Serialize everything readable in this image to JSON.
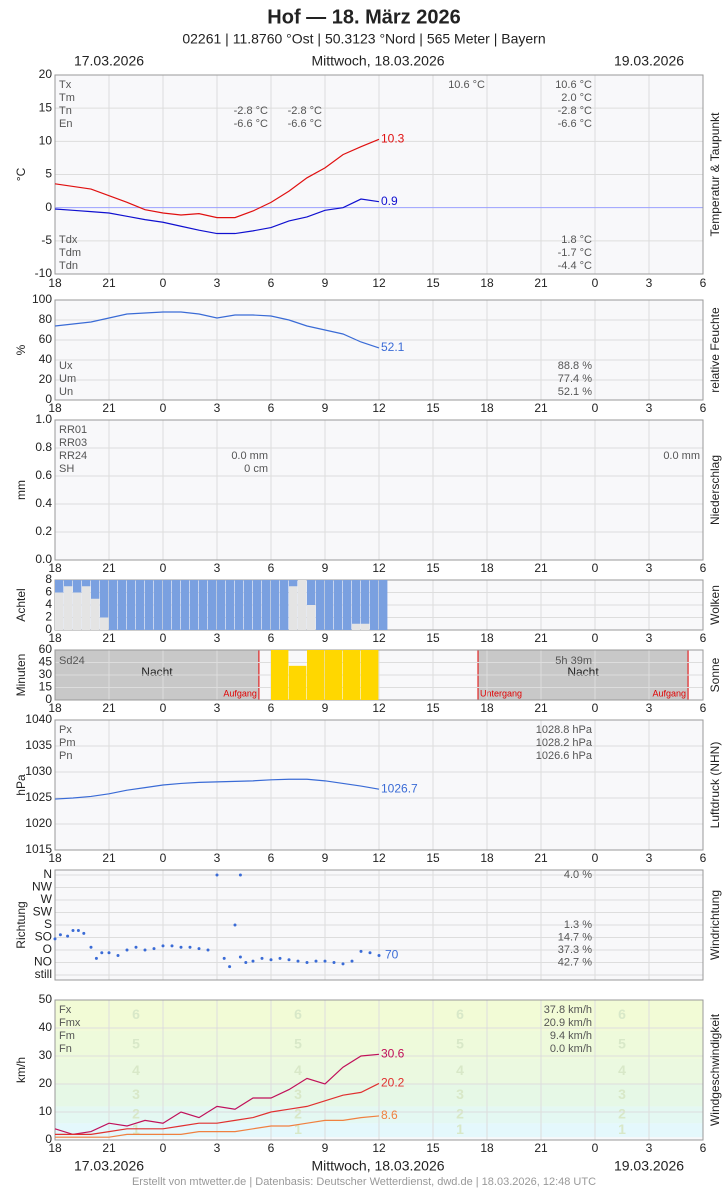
{
  "header": {
    "title": "Hof  —  18. März 2026",
    "subtitle": "02261  |  11.8760 °Ost  |  50.3123 °Nord  |  565 Meter  |  Bayern",
    "dates": [
      "17.03.2026",
      "Mittwoch, 18.03.2026",
      "19.03.2026"
    ]
  },
  "footer": "Erstellt von mtwetter.de | Datenbasis: Deutscher Wetterdienst, dwd.de | 18.03.2026, 12:48 UTC",
  "x_axis": {
    "xlim": [
      18,
      54
    ],
    "xticks": [
      18,
      21,
      {
        "value": 24,
        "label": "0"
      },
      {
        "value": 27,
        "label": "3"
      },
      {
        "value": 30,
        "label": "6"
      },
      {
        "value": 33,
        "label": "9"
      },
      {
        "value": 36,
        "label": "12"
      },
      {
        "value": 39,
        "label": "15"
      },
      {
        "value": 42,
        "label": "18"
      },
      {
        "value": 45,
        "label": "21"
      },
      {
        "value": 48,
        "label": "0"
      },
      {
        "value": 51,
        "label": "3"
      },
      {
        "value": 54,
        "label": "6"
      }
    ]
  },
  "chart_data": [
    {
      "type": "line",
      "ylabel": "°C",
      "side_title": "Temperatur & Taupunkt",
      "ylim": [
        -10,
        20
      ],
      "yticks": [
        20,
        15,
        10,
        5,
        0,
        -5,
        -10
      ],
      "series": [
        {
          "color": "#e01010",
          "x": [
            18,
            19,
            20,
            21,
            22,
            23,
            24,
            25,
            26,
            27,
            28,
            29,
            30,
            31,
            32,
            33,
            34,
            35,
            36
          ],
          "values": [
            3.6,
            3.2,
            2.8,
            1.8,
            0.8,
            -0.3,
            -0.8,
            -1.1,
            -0.9,
            -1.5,
            -1.5,
            -0.5,
            0.8,
            2.5,
            4.5,
            6.0,
            8.0,
            9.2,
            10.3
          ]
        },
        {
          "color": "#1010d0",
          "x": [
            18,
            19,
            20,
            21,
            22,
            23,
            24,
            25,
            26,
            27,
            28,
            29,
            30,
            31,
            32,
            33,
            34,
            35,
            36
          ],
          "values": [
            -0.2,
            -0.4,
            -0.6,
            -0.8,
            -1.3,
            -1.8,
            -2.2,
            -2.8,
            -3.4,
            -3.9,
            -3.9,
            -3.5,
            -3.0,
            -2.0,
            -1.4,
            -0.4,
            0.0,
            1.3,
            0.9
          ]
        }
      ],
      "stats": [
        {
          "name": "Tx",
          "col3": "10.6 °C",
          "col4": "10.6 °C"
        },
        {
          "name": "Tm",
          "col4": "2.0 °C"
        },
        {
          "name": "Tn",
          "col1": "-2.8 °C",
          "col2": "-2.8 °C",
          "col4": "-2.8 °C"
        },
        {
          "name": "En",
          "col1": "-6.6 °C",
          "col2": "-6.6 °C",
          "col4": "-6.6 °C"
        }
      ],
      "stats_bottom": [
        {
          "name": "Tdx",
          "col4": "1.8 °C"
        },
        {
          "name": "Tdm",
          "col4": "-1.7 °C"
        },
        {
          "name": "Tdn",
          "col4": "-4.4 °C"
        }
      ]
    },
    {
      "type": "line",
      "ylabel": "%",
      "side_title": "relative Feuchte",
      "ylim": [
        0,
        100
      ],
      "yticks": [
        100,
        80,
        60,
        40,
        20,
        0
      ],
      "series": [
        {
          "color": "#3a6bd6",
          "x": [
            18,
            19,
            20,
            21,
            22,
            23,
            24,
            25,
            26,
            27,
            28,
            29,
            30,
            31,
            32,
            33,
            34,
            35,
            36
          ],
          "values": [
            74,
            76,
            78,
            82,
            86,
            87,
            88,
            88,
            86,
            82,
            85,
            85,
            84,
            80,
            74,
            70,
            66,
            58,
            52.1
          ]
        }
      ],
      "stats_bottom": [
        {
          "name": "Ux",
          "col4": "88.8 %"
        },
        {
          "name": "Um",
          "col4": "77.4 %"
        },
        {
          "name": "Un",
          "col4": "52.1 %"
        }
      ]
    },
    {
      "type": "bar",
      "ylabel": "mm",
      "side_title": "Niederschlag",
      "ylim": [
        0,
        1
      ],
      "yticks": [
        {
          "value": 1,
          "label": "1.0"
        },
        0.8,
        0.6,
        0.4,
        0.2,
        {
          "value": 0,
          "label": "0.0"
        }
      ],
      "stats": [
        {
          "name": "RR01"
        },
        {
          "name": "RR03"
        },
        {
          "name": "RR24",
          "col1": "0.0 mm",
          "col5": "0.0 mm"
        },
        {
          "name": "SH",
          "col1": "0 cm"
        }
      ]
    },
    {
      "type": "bar",
      "ylabel": "Achtel",
      "side_title": "Wolken",
      "ylim": [
        0,
        8
      ],
      "yticks": [
        8,
        6,
        4,
        2,
        0
      ],
      "series": [
        {
          "color": "#7aa0e0",
          "x": [
            18,
            18.5,
            19,
            19.5,
            20,
            20.5,
            21,
            21.5,
            22,
            22.5,
            23,
            23.5,
            24,
            24.5,
            25,
            25.5,
            26,
            26.5,
            27,
            27.5,
            28,
            28.5,
            29,
            29.5,
            30,
            30.5,
            31,
            31.5,
            32,
            32.5,
            33,
            33.5,
            34,
            34.5,
            35,
            35.5,
            36
          ],
          "values": [
            8,
            8,
            8,
            8,
            8,
            8,
            8,
            8,
            8,
            8,
            8,
            8,
            8,
            8,
            8,
            8,
            8,
            8,
            8,
            8,
            8,
            8,
            8,
            8,
            8,
            8,
            8,
            8,
            8,
            8,
            8,
            8,
            8,
            8,
            8,
            8,
            8
          ]
        },
        {
          "color": "#e4e4e4",
          "x": [
            18,
            18.5,
            19,
            19.5,
            20,
            20.5,
            31,
            31.5,
            32,
            34.5,
            35
          ],
          "values": [
            6,
            7,
            6,
            7,
            5,
            2,
            7,
            8,
            4,
            1,
            1
          ]
        }
      ]
    },
    {
      "type": "bar",
      "ylabel": "Minuten",
      "side_title": "Sonne",
      "ylim": [
        0,
        60
      ],
      "yticks": [
        60,
        45,
        30,
        15,
        0
      ],
      "series": [
        {
          "color": "#ffd700",
          "x": [
            30,
            31,
            32,
            33,
            34,
            35
          ],
          "values": [
            60,
            41,
            60,
            60,
            60,
            60
          ]
        }
      ],
      "stats": [
        {
          "name": "Sd24",
          "col4": "5h 39m"
        }
      ],
      "night_label": "Nacht",
      "events": [
        {
          "label": "Aufgang",
          "x": 29.33
        },
        {
          "label": "Untergang",
          "x": 41.5
        },
        {
          "label": "Aufgang",
          "x": 53.17
        }
      ]
    },
    {
      "type": "line",
      "ylabel": "hPa",
      "side_title": "Luftdruck (NHN)",
      "ylim": [
        1015,
        1040
      ],
      "yticks": [
        1040,
        1035,
        1030,
        1025,
        1020,
        1015
      ],
      "series": [
        {
          "color": "#3a6bd6",
          "x": [
            18,
            19,
            20,
            21,
            22,
            23,
            24,
            25,
            26,
            27,
            28,
            29,
            30,
            31,
            32,
            33,
            34,
            35,
            36
          ],
          "values": [
            1024.8,
            1025.0,
            1025.3,
            1025.8,
            1026.5,
            1027.0,
            1027.5,
            1027.8,
            1028.0,
            1028.1,
            1028.2,
            1028.3,
            1028.5,
            1028.6,
            1028.6,
            1028.3,
            1027.8,
            1027.3,
            1026.7
          ]
        }
      ],
      "stats": [
        {
          "name": "Px",
          "col4": "1028.8 hPa"
        },
        {
          "name": "Pm",
          "col4": "1028.2 hPa"
        },
        {
          "name": "Pn",
          "col4": "1026.6 hPa"
        }
      ]
    },
    {
      "type": "scatter",
      "ylabel": "Richtung",
      "side_title": "Windrichtung",
      "ylim": [
        0,
        360
      ],
      "yticks": [
        {
          "value": 360,
          "label": "N"
        },
        {
          "value": 315,
          "label": "NW"
        },
        {
          "value": 270,
          "label": "W"
        },
        {
          "value": 225,
          "label": "SW"
        },
        {
          "value": 180,
          "label": "S"
        },
        {
          "value": 135,
          "label": "SO"
        },
        {
          "value": 90,
          "label": "O"
        },
        {
          "value": 45,
          "label": "NO"
        },
        {
          "value": 0,
          "label": "still"
        }
      ],
      "shares": [
        "4.0 %",
        null,
        null,
        null,
        "1.3 %",
        "14.7 %",
        "37.3 %",
        "42.7 %",
        null
      ],
      "series": [
        {
          "color": "#3a6bd6",
          "x": [
            18,
            18.3,
            18.7,
            19,
            19.3,
            19.6,
            20,
            20.3,
            20.6,
            21,
            21.5,
            22,
            22.5,
            23,
            23.5,
            24,
            24.5,
            25,
            25.5,
            26,
            26.5,
            27,
            27.4,
            27.7,
            28,
            28.3,
            28.3,
            28.6,
            29,
            29.5,
            30,
            30.5,
            31,
            31.5,
            32,
            32.5,
            33,
            33.5,
            34,
            34.5,
            35,
            35.5,
            36
          ],
          "values": [
            130,
            145,
            140,
            160,
            160,
            150,
            100,
            60,
            80,
            80,
            70,
            90,
            100,
            90,
            95,
            105,
            105,
            100,
            100,
            95,
            90,
            360,
            60,
            30,
            180,
            65,
            360,
            45,
            50,
            60,
            55,
            60,
            55,
            50,
            45,
            50,
            50,
            45,
            40,
            50,
            85,
            80,
            70
          ]
        }
      ]
    },
    {
      "type": "line",
      "ylabel": "km/h",
      "side_title": "Windgeschwindigkeit",
      "ylim": [
        0,
        50
      ],
      "yticks": [
        50,
        40,
        30,
        20,
        10,
        0
      ],
      "beaufort": {
        "labels": [
          1,
          2,
          3,
          4,
          5,
          6
        ],
        "edges": [
          1,
          6,
          12,
          20,
          29,
          39,
          50
        ],
        "colors": [
          "#e4f8fc",
          "#e4f8f2",
          "#e6f8e6",
          "#ebf9e0",
          "#eefadb",
          "#f2fbd6"
        ]
      },
      "series": [
        {
          "color": "#c0105a",
          "x": [
            18,
            19,
            20,
            21,
            22,
            23,
            24,
            25,
            26,
            27,
            28,
            29,
            30,
            31,
            32,
            33,
            34,
            35,
            36
          ],
          "values": [
            4,
            2,
            3,
            6,
            5,
            7,
            6,
            10,
            8,
            12,
            11,
            15,
            15,
            18,
            22,
            20,
            26,
            30,
            30.6
          ]
        },
        {
          "color": "#e03030",
          "x": [
            18,
            19,
            20,
            21,
            22,
            23,
            24,
            25,
            26,
            27,
            28,
            29,
            30,
            31,
            32,
            33,
            34,
            35,
            36
          ],
          "values": [
            2,
            2,
            2,
            3,
            4,
            4,
            4,
            5,
            6,
            6,
            7,
            8,
            10,
            11,
            12,
            14,
            16,
            17,
            20.2
          ]
        },
        {
          "color": "#f08040",
          "x": [
            18,
            19,
            20,
            21,
            22,
            23,
            24,
            25,
            26,
            27,
            28,
            29,
            30,
            31,
            32,
            33,
            34,
            35,
            36
          ],
          "values": [
            1,
            1,
            1,
            1,
            2,
            2,
            2,
            2,
            3,
            3,
            3,
            4,
            5,
            5,
            6,
            7,
            7,
            8,
            8.6
          ]
        }
      ],
      "stats": [
        {
          "name": "Fx",
          "col4": "37.8 km/h"
        },
        {
          "name": "Fmx",
          "col4": "20.9 km/h"
        },
        {
          "name": "Fm",
          "col4": "9.4 km/h"
        },
        {
          "name": "Fn",
          "col4": "0.0 km/h"
        }
      ]
    }
  ]
}
